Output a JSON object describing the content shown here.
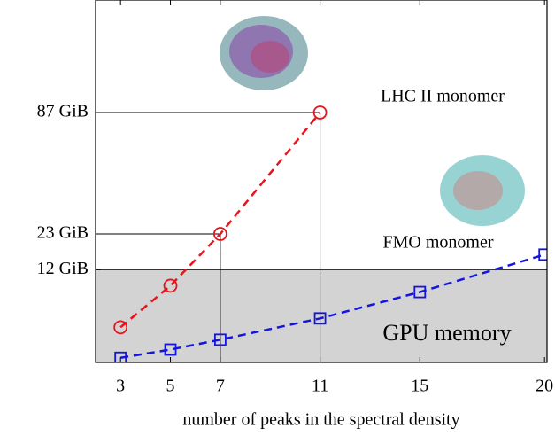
{
  "chart_data": {
    "type": "line",
    "xlabel": "number of peaks in the spectral density",
    "x": [
      3,
      5,
      7,
      11,
      15,
      20
    ],
    "series": [
      {
        "name": "LHC II monomer",
        "color": "#e8141c",
        "marker": "circle",
        "values": [
          1.72,
          8.2,
          23,
          87,
          null,
          null
        ]
      },
      {
        "name": "FMO monomer",
        "color": "#1414e0",
        "marker": "square",
        "values": [
          0.03,
          0.23,
          0.72,
          2.7,
          6.9,
          16.2
        ]
      }
    ],
    "region": {
      "label": "GPU memory",
      "below": 12
    },
    "xlim": [
      2,
      20.1
    ],
    "xticks": [
      3,
      5,
      7,
      11,
      15,
      20
    ],
    "ylim": [
      0,
      183
    ],
    "yscale": "sqrt",
    "yticks": [
      {
        "value": 12,
        "label": "12 GiB"
      },
      {
        "value": 23,
        "label": "23 GiB"
      },
      {
        "value": 87,
        "label": "87 GiB"
      }
    ]
  }
}
